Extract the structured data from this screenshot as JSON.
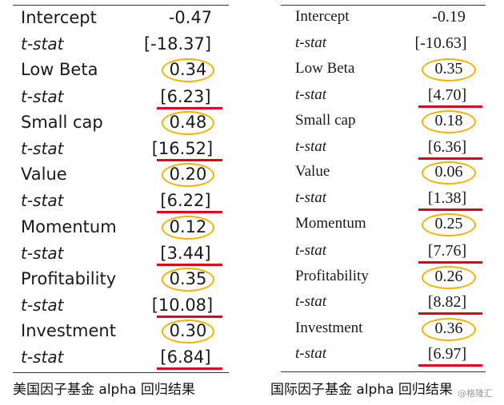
{
  "left_table": {
    "rows": [
      {
        "label": "Intercept",
        "value": "-0.47"
      },
      {
        "label": "t-stat",
        "value": "[-18.37]"
      },
      {
        "label": "Low Beta",
        "value": "0.34"
      },
      {
        "label": "t-stat",
        "value": "[6.23]"
      },
      {
        "label": "Small cap",
        "value": "0.48"
      },
      {
        "label": "t-stat",
        "value": "[16.52]"
      },
      {
        "label": "Value",
        "value": "0.20"
      },
      {
        "label": "t-stat",
        "value": "[6.22]"
      },
      {
        "label": "Momentum",
        "value": "0.12"
      },
      {
        "label": "t-stat",
        "value": "[3.44]"
      },
      {
        "label": "Profitability",
        "value": "0.35"
      },
      {
        "label": "t-stat",
        "value": "[10.08]"
      },
      {
        "label": "Investment",
        "value": "0.30"
      },
      {
        "label": "t-stat",
        "value": "[6.84]"
      }
    ],
    "caption": "美国因子基金 alpha 回归结果"
  },
  "right_table": {
    "rows": [
      {
        "label": "Intercept",
        "value": "-0.19"
      },
      {
        "label": "t-stat",
        "value": "[-10.63]"
      },
      {
        "label": "Low Beta",
        "value": "0.35"
      },
      {
        "label": "t-stat",
        "value": "[4.70]"
      },
      {
        "label": "Small cap",
        "value": "0.18"
      },
      {
        "label": "t-stat",
        "value": "[6.36]"
      },
      {
        "label": "Value",
        "value": "0.06"
      },
      {
        "label": "t-stat",
        "value": "[1.38]"
      },
      {
        "label": "Momentum",
        "value": "0.25"
      },
      {
        "label": "t-stat",
        "value": "[7.76]"
      },
      {
        "label": "Profitability",
        "value": "0.26"
      },
      {
        "label": "t-stat",
        "value": "[8.82]"
      },
      {
        "label": "Investment",
        "value": "0.36"
      },
      {
        "label": "t-stat",
        "value": "[6.97]"
      }
    ],
    "caption": "国际因子基金 alpha  回归结果"
  },
  "watermark": "@格隆汇",
  "colors": {
    "circle_highlight": "#f0b400",
    "underline_highlight": "#e0001b"
  }
}
